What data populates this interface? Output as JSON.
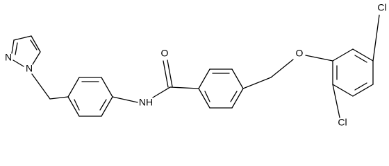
{
  "atoms": [
    "N",
    "N",
    "NH",
    "O",
    "O",
    "Cl",
    "Cl"
  ]
}
